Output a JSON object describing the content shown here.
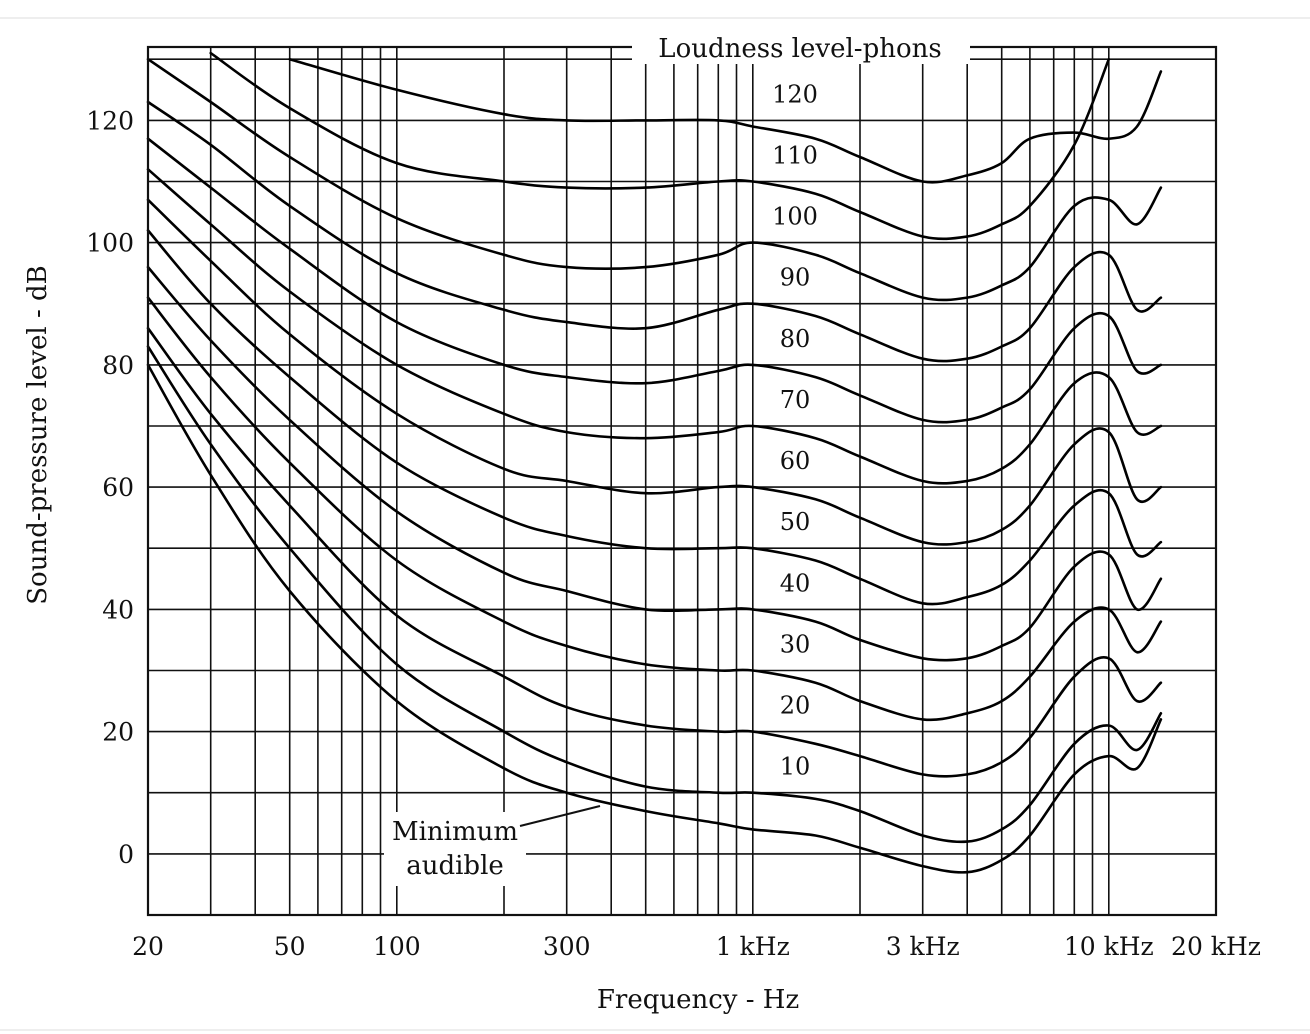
{
  "chart_data": {
    "type": "line",
    "xlabel": "Frequency - Hz",
    "ylabel": "Sound-pressure level - dB",
    "legend_title": "Loudness level-phons",
    "x_scale": "log",
    "xlim": [
      20,
      20000
    ],
    "ylim": [
      -10,
      132
    ],
    "grid": true,
    "x_tick_labels": [
      {
        "value": 20,
        "label": "20"
      },
      {
        "value": 50,
        "label": "50"
      },
      {
        "value": 100,
        "label": "100"
      },
      {
        "value": 300,
        "label": "300"
      },
      {
        "value": 1000,
        "label": "1 kHz"
      },
      {
        "value": 3000,
        "label": "3 kHz"
      },
      {
        "value": 10000,
        "label": "10 kHz"
      },
      {
        "value": 20000,
        "label": "20 kHz"
      }
    ],
    "y_ticks": [
      0,
      20,
      40,
      60,
      80,
      100,
      120
    ],
    "annotation": {
      "text_line1": "Minimum",
      "text_line2": "audible"
    },
    "series": [
      {
        "name": "Minimum audible",
        "x": [
          20,
          30,
          50,
          100,
          200,
          300,
          500,
          800,
          1000,
          1500,
          2000,
          3000,
          4000,
          5000,
          6000,
          8000,
          10000,
          12000,
          14000
        ],
        "y": [
          80,
          62,
          43,
          25,
          14,
          10,
          7,
          5,
          4,
          3,
          1,
          -2,
          -3,
          -1,
          3,
          13,
          16,
          14,
          22
        ]
      },
      {
        "value": 10,
        "label": "10",
        "x": [
          20,
          30,
          50,
          100,
          200,
          300,
          500,
          800,
          1000,
          1500,
          2000,
          3000,
          4000,
          5000,
          6000,
          8000,
          10000,
          12000,
          14000
        ],
        "y": [
          83,
          67,
          50,
          31,
          20,
          15,
          11,
          10,
          10,
          9,
          7,
          3,
          2,
          4,
          8,
          18,
          21,
          17,
          23
        ]
      },
      {
        "value": 20,
        "label": "20",
        "x": [
          20,
          30,
          50,
          100,
          200,
          300,
          500,
          800,
          1000,
          1500,
          2000,
          3000,
          4000,
          5000,
          6000,
          8000,
          10000,
          12000,
          14000
        ],
        "y": [
          86,
          72,
          57,
          39,
          29,
          24,
          21,
          20,
          20,
          18,
          16,
          13,
          13,
          15,
          19,
          29,
          32,
          25,
          28
        ]
      },
      {
        "value": 30,
        "label": "30",
        "x": [
          20,
          30,
          50,
          100,
          200,
          300,
          500,
          800,
          1000,
          1500,
          2000,
          3000,
          4000,
          5000,
          6000,
          8000,
          10000,
          12000,
          14000
        ],
        "y": [
          91,
          78,
          64,
          48,
          38,
          34,
          31,
          30,
          30,
          28,
          25,
          22,
          23,
          25,
          29,
          38,
          40,
          33,
          38
        ]
      },
      {
        "value": 40,
        "label": "40",
        "x": [
          20,
          30,
          50,
          100,
          200,
          300,
          500,
          800,
          1000,
          1500,
          2000,
          3000,
          4000,
          5000,
          6000,
          8000,
          10000,
          12000,
          14000
        ],
        "y": [
          96,
          84,
          71,
          56,
          46,
          43,
          40,
          40,
          40,
          38,
          35,
          32,
          32,
          34,
          37,
          47,
          49,
          40,
          45
        ]
      },
      {
        "value": 50,
        "label": "50",
        "x": [
          20,
          30,
          50,
          100,
          200,
          300,
          500,
          800,
          1000,
          1500,
          2000,
          3000,
          4000,
          5000,
          6000,
          8000,
          10000,
          12000,
          14000
        ],
        "y": [
          102,
          90,
          78,
          64,
          55,
          52,
          50,
          50,
          50,
          48,
          45,
          41,
          42,
          44,
          48,
          57,
          59,
          49,
          51
        ]
      },
      {
        "value": 60,
        "label": "60",
        "x": [
          20,
          30,
          50,
          100,
          200,
          300,
          500,
          800,
          1000,
          1500,
          2000,
          3000,
          4000,
          5000,
          6000,
          8000,
          10000,
          12000,
          14000
        ],
        "y": [
          107,
          97,
          85,
          72,
          63,
          61,
          59,
          60,
          60,
          58,
          55,
          51,
          51,
          53,
          57,
          67,
          69,
          58,
          60
        ]
      },
      {
        "value": 70,
        "label": "70",
        "x": [
          20,
          30,
          50,
          100,
          200,
          300,
          500,
          800,
          1000,
          1500,
          2000,
          3000,
          4000,
          5000,
          6000,
          8000,
          10000,
          12000,
          14000
        ],
        "y": [
          112,
          103,
          92,
          80,
          72,
          69,
          68,
          69,
          70,
          68,
          65,
          61,
          61,
          63,
          67,
          77,
          78,
          69,
          70
        ]
      },
      {
        "value": 80,
        "label": "80",
        "x": [
          20,
          30,
          50,
          100,
          200,
          300,
          500,
          800,
          1000,
          1500,
          2000,
          3000,
          4000,
          5000,
          6000,
          8000,
          10000,
          12000,
          14000
        ],
        "y": [
          117,
          109,
          99,
          87,
          80,
          78,
          77,
          79,
          80,
          78,
          75,
          71,
          71,
          73,
          76,
          86,
          88,
          79,
          80
        ]
      },
      {
        "value": 90,
        "label": "90",
        "x": [
          20,
          30,
          50,
          100,
          200,
          300,
          500,
          800,
          1000,
          1500,
          2000,
          3000,
          4000,
          5000,
          6000,
          8000,
          10000,
          12000,
          14000
        ],
        "y": [
          123,
          116,
          106,
          95,
          89,
          87,
          86,
          89,
          90,
          88,
          85,
          81,
          81,
          83,
          86,
          96,
          98,
          89,
          91
        ]
      },
      {
        "value": 100,
        "label": "100",
        "x": [
          20,
          30,
          50,
          100,
          200,
          300,
          500,
          800,
          1000,
          1500,
          2000,
          3000,
          4000,
          5000,
          6000,
          8000,
          10000,
          12000,
          14000
        ],
        "y": [
          130,
          123,
          114,
          104,
          98,
          96,
          96,
          98,
          100,
          98,
          95,
          91,
          91,
          93,
          96,
          106,
          107,
          103,
          109
        ]
      },
      {
        "value": 110,
        "label": "110",
        "x": [
          30,
          50,
          100,
          200,
          300,
          500,
          800,
          1000,
          1500,
          2000,
          3000,
          4000,
          5000,
          6000,
          8000,
          10000
        ],
        "y": [
          131,
          122,
          113,
          110,
          109,
          109,
          110,
          110,
          108,
          105,
          101,
          101,
          103,
          106,
          116,
          130
        ]
      },
      {
        "value": 120,
        "label": "120",
        "x": [
          50,
          100,
          200,
          300,
          500,
          800,
          1000,
          1500,
          2000,
          3000,
          4000,
          5000,
          6000,
          8000,
          10000,
          12000,
          14000
        ],
        "y": [
          130,
          125,
          121,
          120,
          120,
          120,
          119,
          117,
          114,
          110,
          111,
          113,
          117,
          118,
          117,
          119,
          128
        ]
      }
    ]
  }
}
